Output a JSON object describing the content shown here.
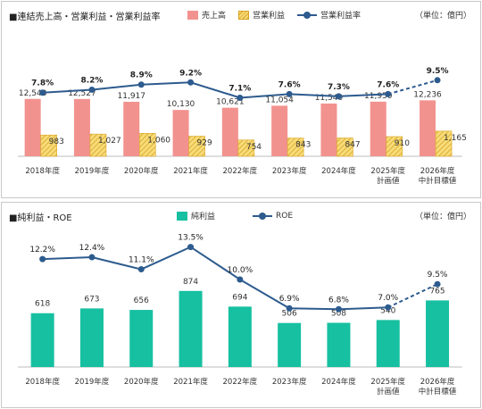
{
  "colors": {
    "sales": "#f2928e",
    "op_profit_fill": "#f7dc7a",
    "op_profit_hatch": "#d9a321",
    "line": "#2d5b8e",
    "net_profit": "#16c0a0"
  },
  "chart_data": [
    {
      "type": "bar",
      "title": "■連結売上高・営業利益・営業利益率",
      "unit_label": "（単位：億円）",
      "categories": [
        [
          "2018年度"
        ],
        [
          "2019年度"
        ],
        [
          "2020年度"
        ],
        [
          "2021年度"
        ],
        [
          "2022年度"
        ],
        [
          "2023年度"
        ],
        [
          "2024年度"
        ],
        [
          "2025年度",
          "計画値"
        ],
        [
          "2026年度",
          "中計目標値"
        ]
      ],
      "series": [
        {
          "name": "売上高",
          "type": "bar",
          "values": [
            12543,
            12527,
            11917,
            10130,
            10621,
            11054,
            11540,
            11950,
            12236
          ],
          "labels": [
            "12,543",
            "12,527",
            "11,917",
            "10,130",
            "10,621",
            "11,054",
            "11,540",
            "11,950",
            "12,236"
          ]
        },
        {
          "name": "営業利益",
          "type": "bar",
          "values": [
            983,
            1027,
            1060,
            929,
            754,
            843,
            847,
            910,
            1165
          ],
          "labels": [
            "983",
            "1,027",
            "1,060",
            "929",
            "754",
            "843",
            "847",
            "910",
            "1,165"
          ]
        },
        {
          "name": "営業利益率",
          "type": "line",
          "values": [
            7.8,
            8.2,
            8.9,
            9.2,
            7.1,
            7.6,
            7.3,
            7.6,
            9.5
          ],
          "labels": [
            "7.8%",
            "8.2%",
            "8.9%",
            "9.2%",
            "7.1%",
            "7.6%",
            "7.3%",
            "7.6%",
            "9.5%"
          ],
          "dashed_last_segment": true
        }
      ],
      "legend_position": "top-center"
    },
    {
      "type": "bar",
      "title": "■純利益・ROE",
      "unit_label": "（単位：億円）",
      "categories": [
        [
          "2018年度"
        ],
        [
          "2019年度"
        ],
        [
          "2020年度"
        ],
        [
          "2021年度"
        ],
        [
          "2022年度"
        ],
        [
          "2023年度"
        ],
        [
          "2024年度"
        ],
        [
          "2025年度",
          "計画値"
        ],
        [
          "2026年度",
          "中計目標値"
        ]
      ],
      "series": [
        {
          "name": "純利益",
          "type": "bar",
          "values": [
            618,
            673,
            656,
            874,
            694,
            506,
            508,
            540,
            765
          ],
          "labels": [
            "618",
            "673",
            "656",
            "874",
            "694",
            "506",
            "508",
            "540",
            "765"
          ]
        },
        {
          "name": "ROE",
          "type": "line",
          "values": [
            12.2,
            12.4,
            11.1,
            13.5,
            10.0,
            6.9,
            6.8,
            7.0,
            9.5
          ],
          "labels": [
            "12.2%",
            "12.4%",
            "11.1%",
            "13.5%",
            "10.0%",
            "6.9%",
            "6.8%",
            "7.0%",
            "9.5%"
          ],
          "dashed_last_segment": true
        }
      ],
      "legend_position": "top-center"
    }
  ]
}
